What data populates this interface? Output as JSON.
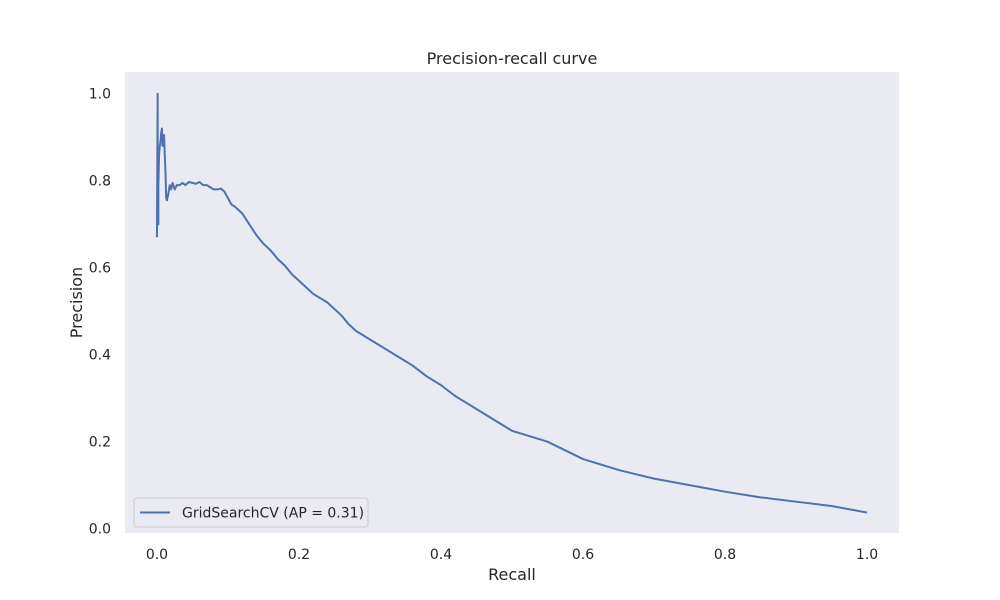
{
  "chart_data": {
    "type": "line",
    "title": "Precision-recall curve",
    "xlabel": "Recall",
    "ylabel": "Precision",
    "xlim": [
      -0.045,
      1.045
    ],
    "ylim": [
      -0.01,
      1.05
    ],
    "xticks": [
      0.0,
      0.2,
      0.4,
      0.6,
      0.8,
      1.0
    ],
    "yticks": [
      0.0,
      0.2,
      0.4,
      0.6,
      0.8,
      1.0
    ],
    "xtick_labels": [
      "0.0",
      "0.2",
      "0.4",
      "0.6",
      "0.8",
      "1.0"
    ],
    "ytick_labels": [
      "0.0",
      "0.2",
      "0.4",
      "0.6",
      "0.8",
      "1.0"
    ],
    "grid": false,
    "legend_position": "lower-left",
    "background": "#eaeaf2",
    "series": [
      {
        "name": "GridSearchCV (AP = 0.31)",
        "color": "#4c72b0",
        "x": [
          0.0,
          0.001,
          0.001,
          0.002,
          0.002,
          0.003,
          0.004,
          0.005,
          0.006,
          0.007,
          0.008,
          0.009,
          0.01,
          0.011,
          0.012,
          0.013,
          0.014,
          0.016,
          0.018,
          0.02,
          0.022,
          0.025,
          0.028,
          0.032,
          0.036,
          0.04,
          0.045,
          0.05,
          0.055,
          0.06,
          0.065,
          0.07,
          0.075,
          0.08,
          0.085,
          0.09,
          0.095,
          0.1,
          0.105,
          0.11,
          0.12,
          0.13,
          0.14,
          0.15,
          0.16,
          0.17,
          0.18,
          0.19,
          0.2,
          0.22,
          0.24,
          0.26,
          0.27,
          0.28,
          0.3,
          0.32,
          0.34,
          0.36,
          0.38,
          0.4,
          0.42,
          0.44,
          0.46,
          0.48,
          0.5,
          0.55,
          0.6,
          0.65,
          0.7,
          0.75,
          0.8,
          0.85,
          0.9,
          0.95,
          1.0
        ],
        "y": [
          0.67,
          1.0,
          0.74,
          0.7,
          0.79,
          0.86,
          0.88,
          0.89,
          0.91,
          0.92,
          0.88,
          0.9,
          0.905,
          0.86,
          0.82,
          0.76,
          0.755,
          0.77,
          0.79,
          0.78,
          0.795,
          0.78,
          0.79,
          0.79,
          0.795,
          0.79,
          0.797,
          0.795,
          0.793,
          0.797,
          0.79,
          0.79,
          0.785,
          0.78,
          0.78,
          0.782,
          0.775,
          0.76,
          0.745,
          0.74,
          0.725,
          0.7,
          0.675,
          0.655,
          0.64,
          0.62,
          0.605,
          0.585,
          0.57,
          0.54,
          0.52,
          0.49,
          0.47,
          0.455,
          0.435,
          0.415,
          0.395,
          0.375,
          0.35,
          0.33,
          0.305,
          0.285,
          0.265,
          0.245,
          0.225,
          0.2,
          0.16,
          0.135,
          0.115,
          0.1,
          0.085,
          0.072,
          0.062,
          0.052,
          0.037
        ]
      }
    ]
  }
}
